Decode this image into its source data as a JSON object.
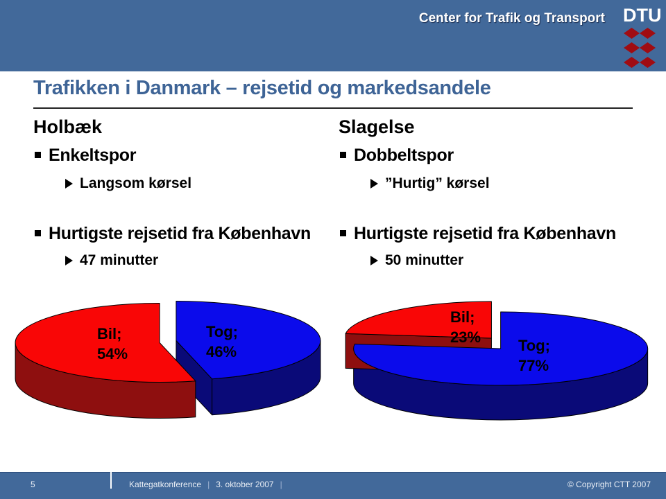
{
  "header": {
    "title": "Center for Trafik og Transport",
    "logo_text": "DTU"
  },
  "slide": {
    "title": "Trafikken i Danmark – rejsetid og markedsandele",
    "columns": [
      {
        "heading": "Holbæk",
        "bullet1": "Enkeltspor",
        "sub1": "Langsom kørsel",
        "bullet2": "Hurtigste rejsetid fra København",
        "sub2": "47 minutter"
      },
      {
        "heading": "Slagelse",
        "bullet1": "Dobbeltspor",
        "sub1": "”Hurtig” kørsel",
        "bullet2": "Hurtigste rejsetid fra København",
        "sub2": "50 minutter"
      }
    ]
  },
  "chart_data": [
    {
      "type": "pie",
      "title": "Holbæk markedsandele",
      "effect": "3d-exploded",
      "legend_position": "none",
      "unit": "%",
      "slices": [
        {
          "label": "Tog",
          "value": 46,
          "display_name": "Tog;",
          "display_value": "46%",
          "color": "#0B0BEB",
          "side_color": "#0A0A78"
        },
        {
          "label": "Bil",
          "value": 54,
          "display_name": "Bil;",
          "display_value": "54%",
          "color": "#F90606",
          "side_color": "#8E0F0F"
        }
      ]
    },
    {
      "type": "pie",
      "title": "Slagelse markedsandele",
      "effect": "3d-exploded",
      "legend_position": "none",
      "unit": "%",
      "slices": [
        {
          "label": "Tog",
          "value": 77,
          "display_name": "Tog;",
          "display_value": "77%",
          "color": "#0B0BEB",
          "side_color": "#0A0A78"
        },
        {
          "label": "Bil",
          "value": 23,
          "display_name": "Bil;",
          "display_value": "23%",
          "color": "#F90606",
          "side_color": "#8E0F0F"
        }
      ]
    }
  ],
  "footer": {
    "page_number": "5",
    "event": "Kattegatkonference",
    "separator": "|",
    "date": "3. oktober 2007",
    "copyright": "© Copyright CTT 2007"
  },
  "colors": {
    "band": "#42699A",
    "title_text": "#3E6496",
    "logo_red": "#A00C12"
  }
}
